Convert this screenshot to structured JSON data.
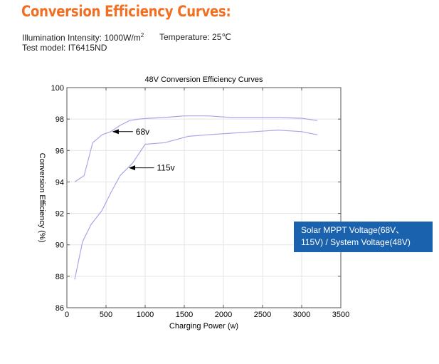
{
  "heading": "Conversion Efficiency Curves:",
  "conditions": {
    "illumination_label": "Illumination Intensity: 1000W/m",
    "illumination_sup": "2",
    "temperature": "Temperature: 25℃",
    "test_model": "Test model: IT6415ND"
  },
  "info_box": {
    "line1": "Solar MPPT Voltage(68V、",
    "line2": "115V) / System Voltage(48V)"
  },
  "colors": {
    "heading": "#f26f21",
    "series": "#a7a7e8",
    "info_box": "#1a62ae"
  },
  "chart_data": {
    "type": "line",
    "title": "48V Conversion Efficiency Curves",
    "xlabel": "Charging Power (w)",
    "ylabel": "Conversion Efficiency (%)",
    "xlim": [
      0,
      3500
    ],
    "ylim": [
      86,
      100
    ],
    "xticks": [
      0,
      500,
      1000,
      1500,
      2000,
      2500,
      3000,
      3500
    ],
    "yticks": [
      86,
      88,
      90,
      92,
      94,
      96,
      98,
      100
    ],
    "grid": true,
    "series": [
      {
        "name": "68v",
        "x": [
          100,
          220,
          330,
          450,
          560,
          680,
          800,
          920,
          1050,
          1250,
          1500,
          1800,
          2100,
          2400,
          2700,
          3000,
          3200
        ],
        "y": [
          94.0,
          94.4,
          96.5,
          97.0,
          97.2,
          97.6,
          97.9,
          98.0,
          98.05,
          98.1,
          98.2,
          98.2,
          98.1,
          98.1,
          98.1,
          98.05,
          97.9
        ],
        "annotation": {
          "text": "68v",
          "x": 590,
          "y": 97.2,
          "label_x": 880,
          "label_y": 97.2
        }
      },
      {
        "name": "115v",
        "x": [
          100,
          200,
          310,
          450,
          560,
          680,
          840,
          1000,
          1250,
          1550,
          1800,
          2100,
          2400,
          2700,
          3000,
          3200
        ],
        "y": [
          87.8,
          90.2,
          91.3,
          92.2,
          93.3,
          94.4,
          95.2,
          96.4,
          96.5,
          96.9,
          97.0,
          97.1,
          97.2,
          97.3,
          97.2,
          97.0
        ],
        "annotation": {
          "text": "115v",
          "x": 800,
          "y": 94.9,
          "label_x": 1150,
          "label_y": 94.9
        }
      }
    ]
  }
}
